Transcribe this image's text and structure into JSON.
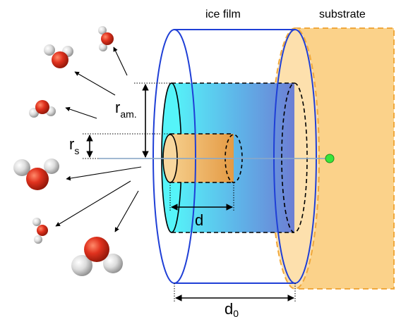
{
  "labels": {
    "ice_film": "ice film",
    "substrate": "substrate",
    "r_am_main": "r",
    "r_am_sub": "am.",
    "r_s_main": "r",
    "r_s_sub": "s",
    "d": "d",
    "d0_main": "d",
    "d0_sub": "0"
  },
  "colors": {
    "substrate": "#fbd28a",
    "substrate_edge": "#f0a83c",
    "ice_outline": "#1f3fd6",
    "ice_gradient_start": "#52f2f8",
    "ice_gradient_end": "#6f7fd2",
    "inner_cylinder": "#f0b25c",
    "axis_point": "#39e639",
    "oxygen": "#e0321e",
    "hydrogen": "#dcdcdc"
  },
  "icons": {
    "molecule": "water-molecule-icon",
    "axis_point": "green-dot-icon"
  }
}
